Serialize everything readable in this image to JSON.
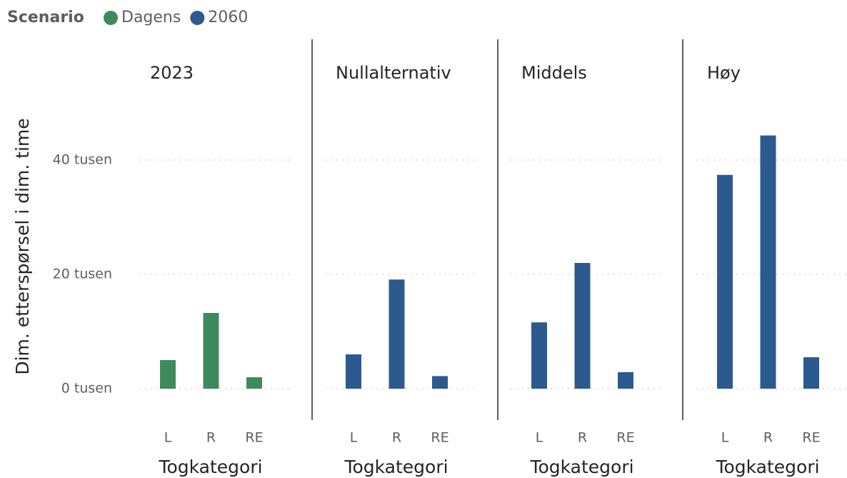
{
  "chart_data": {
    "type": "bar",
    "legend_title": "Scenario",
    "series": [
      {
        "name": "Dagens",
        "color": "#3f8a5c"
      },
      {
        "name": "2060",
        "color": "#2c5a8f"
      }
    ],
    "y_label": "Dim. etterspørsel i dim. time",
    "x_label": "Togkategori",
    "categories": [
      "L",
      "R",
      "RE"
    ],
    "ylim": [
      0,
      50000
    ],
    "yticks": [
      {
        "value": 0,
        "label": "0 tusen"
      },
      {
        "value": 20000,
        "label": "20 tusen"
      },
      {
        "value": 40000,
        "label": "40 tusen"
      }
    ],
    "grid": true,
    "panels": [
      {
        "title": "2023",
        "series": 0,
        "values": [
          5000,
          13250,
          2000
        ]
      },
      {
        "title": "Nullalternativ",
        "series": 1,
        "values": [
          6000,
          19100,
          2200
        ]
      },
      {
        "title": "Middels",
        "series": 1,
        "values": [
          11600,
          22000,
          2900
        ]
      },
      {
        "title": "Høy",
        "series": 1,
        "values": [
          37400,
          44300,
          5500
        ]
      }
    ]
  }
}
